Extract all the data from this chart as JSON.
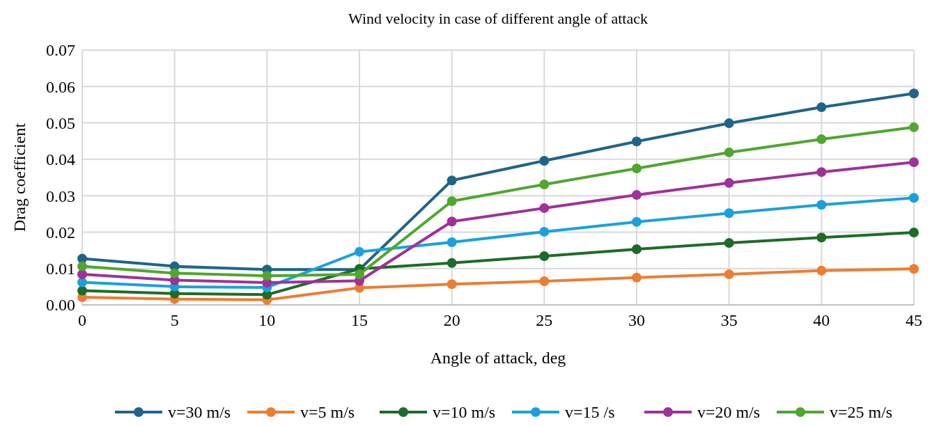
{
  "chart_data": {
    "type": "line",
    "title": "Wind velocity in case of different angle of attack",
    "xlabel": "Angle of attack, deg",
    "ylabel": "Drag coefficient",
    "x": [
      0,
      5,
      10,
      15,
      20,
      25,
      30,
      35,
      40,
      45
    ],
    "xlim": [
      0,
      45
    ],
    "xticks": [
      0,
      5,
      10,
      15,
      20,
      25,
      30,
      35,
      40,
      45
    ],
    "ylim": [
      0,
      0.07
    ],
    "yticks": [
      {
        "value": 0,
        "label": "0.00"
      },
      {
        "value": 0.01,
        "label": "0.01"
      },
      {
        "value": 0.02,
        "label": "0.02"
      },
      {
        "value": 0.03,
        "label": "0.03"
      },
      {
        "value": 0.04,
        "label": "0.04"
      },
      {
        "value": 0.05,
        "label": "0.05"
      },
      {
        "value": 0.06,
        "label": "0.06"
      },
      {
        "value": 0.07,
        "label": "0.07"
      }
    ],
    "grid": true,
    "legend": "bottom",
    "marker": "circle",
    "line_style": "solid",
    "series": [
      {
        "name": "v=30 m/s",
        "color": "#1f6489",
        "values": [
          0.0127,
          0.0106,
          0.0097,
          0.0097,
          0.0342,
          0.0396,
          0.0449,
          0.0499,
          0.0543,
          0.0581
        ]
      },
      {
        "name": "v=5 m/s",
        "color": "#ed7d31",
        "values": [
          0.0021,
          0.0016,
          0.0014,
          0.0047,
          0.0057,
          0.0065,
          0.0075,
          0.0084,
          0.0094,
          0.0099
        ]
      },
      {
        "name": "v=10 m/s",
        "color": "#1e6b27",
        "values": [
          0.0039,
          0.0031,
          0.0028,
          0.0099,
          0.0115,
          0.0134,
          0.0153,
          0.017,
          0.0185,
          0.0199
        ]
      },
      {
        "name": "v=15 /s",
        "color": "#1aa1dc",
        "values": [
          0.0062,
          0.005,
          0.0048,
          0.0146,
          0.0172,
          0.0201,
          0.0228,
          0.0252,
          0.0275,
          0.0294
        ]
      },
      {
        "name": "v=20 m/s",
        "color": "#a0309a",
        "values": [
          0.0084,
          0.0068,
          0.0061,
          0.0066,
          0.0229,
          0.0266,
          0.0302,
          0.0335,
          0.0365,
          0.0392
        ]
      },
      {
        "name": "v=25 m/s",
        "color": "#4ea72e",
        "values": [
          0.0106,
          0.0087,
          0.008,
          0.0084,
          0.0285,
          0.0331,
          0.0375,
          0.0419,
          0.0455,
          0.0488
        ]
      }
    ]
  }
}
